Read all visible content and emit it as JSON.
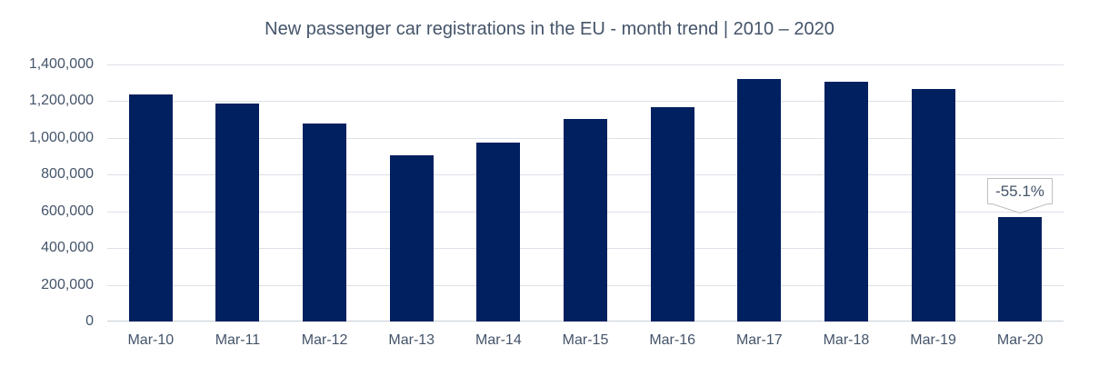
{
  "chart": {
    "title": "New passenger car registrations in the EU - month trend | 2010 – 2020"
  },
  "chart_data": {
    "type": "bar",
    "title": "New passenger car registrations in the EU - month trend | 2010 – 2020",
    "categories": [
      "Mar-10",
      "Mar-11",
      "Mar-12",
      "Mar-13",
      "Mar-14",
      "Mar-15",
      "Mar-16",
      "Mar-17",
      "Mar-18",
      "Mar-19",
      "Mar-20"
    ],
    "values": [
      1235000,
      1185000,
      1080000,
      905000,
      975000,
      1105000,
      1170000,
      1320000,
      1305000,
      1265000,
      567000
    ],
    "xlabel": "",
    "ylabel": "",
    "ylim": [
      0,
      1400000
    ],
    "ytick_step": 200000,
    "ytick_labels": [
      "0",
      "200,000",
      "400,000",
      "600,000",
      "800,000",
      "1,000,000",
      "1,200,000",
      "1,400,000"
    ],
    "grid": true,
    "legend": false,
    "annotation": {
      "category": "Mar-20",
      "text": "-55.1%"
    }
  },
  "colors": {
    "background": "#FFFFFF",
    "bar": "#002060",
    "title_text": "#44546A",
    "axis_text": "#44546A",
    "gridline": "#DCE1E7",
    "axis_line": "#C9D0D8",
    "callout_bg": "#FFFFFF",
    "callout_border": "#BFBFBF"
  }
}
